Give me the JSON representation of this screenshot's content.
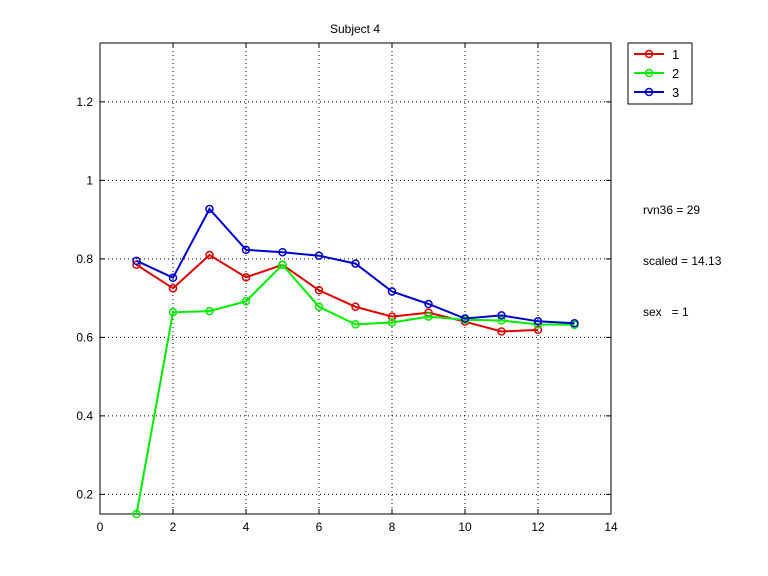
{
  "chart_data": {
    "type": "line",
    "title": "Subject 4",
    "xlabel": "",
    "ylabel": "",
    "xlim": [
      0,
      14
    ],
    "ylim": [
      0.15,
      1.35
    ],
    "x_ticks": [
      0,
      2,
      4,
      6,
      8,
      10,
      12,
      14
    ],
    "y_ticks": [
      0.2,
      0.4,
      0.6,
      0.8,
      1,
      1.2
    ],
    "x_tick_labels": [
      "0",
      "2",
      "4",
      "6",
      "8",
      "10",
      "12",
      "14"
    ],
    "y_tick_labels": [
      "0.2",
      "0.4",
      "0.6",
      "0.8",
      "1",
      "1.2"
    ],
    "grid": true,
    "legend_position": "outside-top-right",
    "series": [
      {
        "name": "1",
        "color": "#e00000",
        "x": [
          1,
          2,
          3,
          4,
          5,
          6,
          7,
          8,
          9,
          10,
          11,
          12
        ],
        "y": [
          0.785,
          0.725,
          0.81,
          0.753,
          0.785,
          0.72,
          0.678,
          0.653,
          0.663,
          0.64,
          0.615,
          0.619
        ]
      },
      {
        "name": "2",
        "color": "#00ee00",
        "x": [
          1,
          2,
          3,
          4,
          5,
          6,
          7,
          8,
          9,
          10,
          11,
          12,
          13
        ],
        "y": [
          0.15,
          0.664,
          0.667,
          0.692,
          0.785,
          0.678,
          0.633,
          0.638,
          0.653,
          0.645,
          0.643,
          0.633,
          0.632
        ]
      },
      {
        "name": "3",
        "color": "#0000cc",
        "x": [
          1,
          2,
          3,
          4,
          5,
          6,
          7,
          8,
          9,
          10,
          11,
          12,
          13
        ],
        "y": [
          0.795,
          0.752,
          0.927,
          0.823,
          0.817,
          0.808,
          0.788,
          0.717,
          0.685,
          0.648,
          0.656,
          0.641,
          0.636
        ]
      }
    ],
    "annotations": [
      "rvn36 = 29",
      "scaled = 14.13",
      "sex   = 1"
    ]
  }
}
